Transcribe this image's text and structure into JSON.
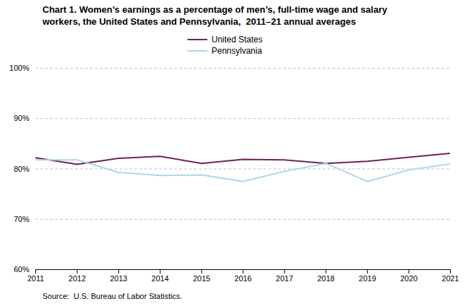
{
  "chart_data": {
    "type": "line",
    "title": "Chart 1. Women’s earnings as a percentage of men’s, full-time wage and salary\nworkers, the United States and Pennsylvania,  2011–21 annual averages",
    "source": "Source:  U.S. Bureau of Labor Statistics.",
    "x": [
      2011,
      2012,
      2013,
      2014,
      2015,
      2016,
      2017,
      2018,
      2019,
      2020,
      2021
    ],
    "series": [
      {
        "name": "United States",
        "color": "#722057",
        "values": [
          82.2,
          80.9,
          82.1,
          82.5,
          81.1,
          81.9,
          81.8,
          81.1,
          81.5,
          82.3,
          83.1
        ]
      },
      {
        "name": "Pennsylvania",
        "color": "#add8e6",
        "values": [
          81.8,
          81.8,
          79.3,
          78.7,
          78.8,
          77.5,
          79.5,
          81.1,
          77.5,
          79.8,
          81.0
        ]
      }
    ],
    "xlim": [
      2011,
      2021
    ],
    "xticks": [
      2011,
      2012,
      2013,
      2014,
      2015,
      2016,
      2017,
      2018,
      2019,
      2020,
      2021
    ],
    "ylim": [
      60,
      100
    ],
    "yticks": [
      {
        "value": 60,
        "label": "60%"
      },
      {
        "value": 70,
        "label": "70%"
      },
      {
        "value": 80,
        "label": "80%"
      },
      {
        "value": 90,
        "label": "90%"
      },
      {
        "value": 100,
        "label": "100%"
      }
    ],
    "grid": true,
    "legend": "top"
  }
}
